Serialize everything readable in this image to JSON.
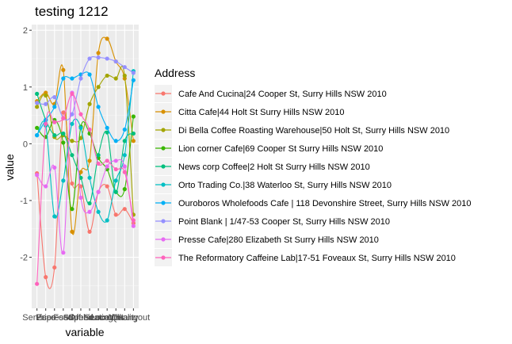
{
  "chart_data": {
    "type": "line",
    "title": "testing 1212",
    "xlabel": "variable",
    "ylabel": "value",
    "categories": [
      "Service",
      "Price",
      "Espresso",
      "Food",
      "Staff",
      "Speed",
      "Ambience",
      "Seating",
      "Location",
      "Milk",
      "Quality",
      "Hangout"
    ],
    "ylim": [
      -2.9,
      2.1
    ],
    "yticks": [
      -2,
      -1,
      0,
      1,
      2
    ],
    "grid": true,
    "legend_position": "right",
    "legend_title": "Address",
    "series": [
      {
        "name": "Cafe And Cucina|24 Cooper St, Surry Hills NSW 2010",
        "color": "#F8766D",
        "values": [
          -0.52,
          -2.35,
          -2.18,
          0.55,
          -0.7,
          -0.75,
          -1.55,
          -0.85,
          -0.75,
          -1.25,
          -1.15,
          -1.4
        ]
      },
      {
        "name": "Citta Cafe|44 Holt St Surry Hills NSW 2010",
        "color": "#D89000",
        "values": [
          0.75,
          0.9,
          0.7,
          1.3,
          -1.55,
          -0.5,
          -0.3,
          1.6,
          1.85,
          1.45,
          1.15,
          0.05
        ]
      },
      {
        "name": "Di Bella Coffee Roasting Warehouse|50 Holt St, Surry Hills NSW 2010",
        "color": "#A3A500",
        "values": [
          0.65,
          0.85,
          0.12,
          0.15,
          0.05,
          0.1,
          0.7,
          1.0,
          1.2,
          1.15,
          1.2,
          -1.25
        ]
      },
      {
        "name": "Lion corner Cafe|69 Cooper St Surry Hills NSW 2010",
        "color": "#39B600",
        "values": [
          0.28,
          0.12,
          0.42,
          0.02,
          -1.15,
          0.3,
          0.18,
          -0.25,
          -0.45,
          -0.85,
          -0.8,
          0.48
        ]
      },
      {
        "name": "News corp Coffee|2 Holt St Surry Hills NSW 2010",
        "color": "#00BF7D",
        "values": [
          0.88,
          0.42,
          0.15,
          0.18,
          -0.2,
          -0.6,
          -1.05,
          -0.2,
          0.2,
          -0.85,
          0.05,
          0.18
        ]
      },
      {
        "name": "Orto Trading Co.|38 Waterloo St, Surry Hills NSW 2010",
        "color": "#00BFC4",
        "values": [
          0.15,
          0.32,
          -1.28,
          -0.65,
          0.35,
          0.28,
          -0.6,
          -1.2,
          -1.35,
          -0.65,
          -0.2,
          1.28
        ]
      },
      {
        "name": "Ouroboros Wholefoods Cafe | 118 Devonshire Street, Surry Hills NSW 2010",
        "color": "#00B0F6",
        "values": [
          0.15,
          0.42,
          0.65,
          1.15,
          1.15,
          1.22,
          1.22,
          0.65,
          0.28,
          0.05,
          0.25,
          1.12
        ]
      },
      {
        "name": "Point Blank | 1/47-53 Cooper St, Surry Hills NSW 2010",
        "color": "#9590FF",
        "values": [
          0.72,
          0.7,
          0.82,
          0.45,
          0.52,
          1.15,
          1.5,
          1.52,
          1.5,
          1.45,
          1.35,
          1.25
        ]
      },
      {
        "name": "Presse Cafe|280 Elizabeth St Surry Hills NSW 2010",
        "color": "#E76BF3",
        "values": [
          -0.55,
          -0.75,
          -0.42,
          -1.92,
          0.9,
          -0.95,
          -1.2,
          -0.85,
          -0.4,
          -0.3,
          -0.4,
          -1.45
        ]
      },
      {
        "name": "The Reformatory Caffeine Lab|17-51 Foveaux St, Surry Hills NSW 2010",
        "color": "#FF62BC",
        "values": [
          -2.47,
          0.35,
          0.38,
          0.45,
          0.88,
          0.52,
          0.25,
          -0.35,
          -0.3,
          -0.45,
          -0.5,
          -1.35
        ]
      }
    ]
  }
}
